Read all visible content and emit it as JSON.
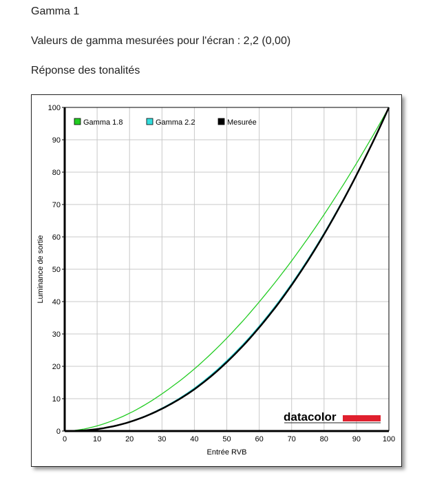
{
  "heading": "Gamma 1",
  "gamma_text": "Valeurs de gamma mesurées pour l'écran : 2,2 (0,00)",
  "section": "Réponse des tonalités",
  "logo": "datacolor",
  "chart_data": {
    "type": "line",
    "xlabel": "Entrée RVB",
    "ylabel": "Luminance de sortie",
    "xlim": [
      0,
      100
    ],
    "ylim": [
      0,
      100
    ],
    "xticks": [
      0,
      10,
      20,
      30,
      40,
      50,
      60,
      70,
      80,
      90,
      100
    ],
    "yticks": [
      0,
      10,
      20,
      30,
      40,
      50,
      60,
      70,
      80,
      90,
      100
    ],
    "grid": true,
    "legend": "top-left",
    "x": [
      0,
      10,
      20,
      30,
      40,
      50,
      60,
      70,
      80,
      90,
      100
    ],
    "series": [
      {
        "name": "Gamma 1.8",
        "color": "#22cc22",
        "values": [
          0,
          1.6,
          5.5,
          11.5,
          19.2,
          28.7,
          39.9,
          52.6,
          66.9,
          82.7,
          100
        ]
      },
      {
        "name": "Gamma 2.2",
        "color": "#33dddd",
        "values": [
          0,
          0.6,
          2.9,
          7.1,
          13.3,
          21.8,
          32.5,
          45.6,
          61.2,
          79.3,
          100
        ]
      },
      {
        "name": "Mesurée",
        "color": "#000000",
        "values": [
          0,
          0.6,
          2.8,
          6.9,
          12.9,
          21.3,
          32.0,
          45.1,
          60.8,
          79.1,
          100
        ]
      }
    ]
  }
}
